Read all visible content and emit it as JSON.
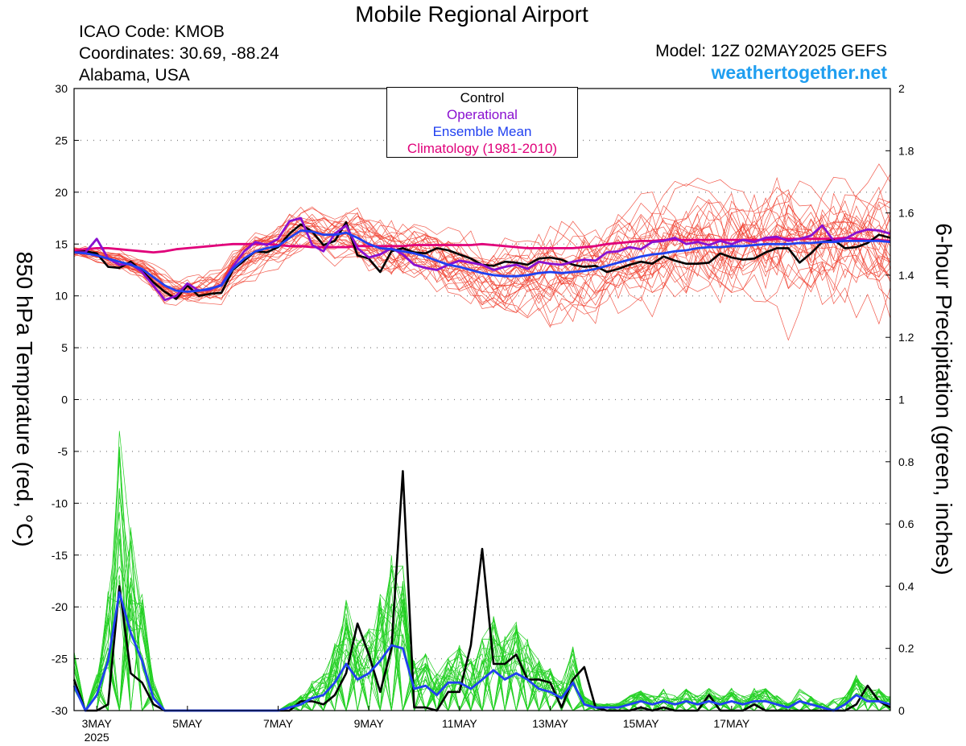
{
  "header": {
    "title": "Mobile Regional Airport",
    "icao": "ICAO Code: KMOB",
    "coordinates": "Coordinates: 30.69, -88.24",
    "region": "Alabama, USA",
    "model": "Model: 12Z 02MAY2025 GEFS",
    "site": "weathertogether.net"
  },
  "legend": {
    "control": "Control",
    "operational": "Operational",
    "ensemble_mean": "Ensemble Mean",
    "climatology": "Climatology (1981-2010)"
  },
  "colors": {
    "control": "#000000",
    "operational": "#8a10d0",
    "ensemble_mean": "#2040f0",
    "climatology": "#e0007a",
    "members_temp": "#f03c2c",
    "members_precip": "#22d022",
    "site": "#1f9ef0"
  },
  "chart_data": {
    "type": "line",
    "xlabel": "",
    "ylabel_left": "850 hPa Temprature (red, °C)",
    "ylabel_right": "6-hour Precipitation (green, inches)",
    "ylim_left": [
      -30,
      30
    ],
    "ylim_right": [
      0,
      2
    ],
    "yticks_left": [
      "30",
      "25",
      "20",
      "15",
      "10",
      "5",
      "0",
      "-5",
      "-10",
      "-15",
      "-20",
      "-25",
      "-30"
    ],
    "yticks_right": [
      "2",
      "1.8",
      "1.6",
      "1.4",
      "1.2",
      "1",
      "0.8",
      "0.6",
      "0.4",
      "0.2",
      "0"
    ],
    "x_start": "2025-05-02T12Z",
    "x_step_hours": 6,
    "xticks": [
      {
        "day": 3,
        "label": "3MAY",
        "sublabel": "2025"
      },
      {
        "day": 5,
        "label": "5MAY",
        "sublabel": ""
      },
      {
        "day": 7,
        "label": "7MAY",
        "sublabel": ""
      },
      {
        "day": 9,
        "label": "9MAY",
        "sublabel": ""
      },
      {
        "day": 11,
        "label": "11MAY",
        "sublabel": ""
      },
      {
        "day": 13,
        "label": "13MAY",
        "sublabel": ""
      },
      {
        "day": 15,
        "label": "15MAY",
        "sublabel": ""
      },
      {
        "day": 17,
        "label": "17MAY",
        "sublabel": ""
      }
    ],
    "grid": "horizontal dotted",
    "legend_position": "top-center",
    "series": [
      {
        "name": "Control",
        "axis": "left",
        "values": [
          14.2,
          14.3,
          14.1,
          12.8,
          12.7,
          13.3,
          12.4,
          11.3,
          10.4,
          9.7,
          11.0,
          10.0,
          10.2,
          10.3,
          12.5,
          13.4,
          14.3,
          14.2,
          14.7,
          16.0,
          16.9,
          16.2,
          14.9,
          15.3,
          17.1,
          13.9,
          13.6,
          12.3,
          14.3,
          14.6,
          14.2,
          14.1,
          14.6,
          14.4,
          14.0,
          13.6,
          13.0,
          12.9,
          13.3,
          13.2,
          13.0,
          13.6,
          13.7,
          13.5,
          13.0,
          12.8,
          12.9,
          12.3,
          12.6,
          13.0,
          13.3,
          13.1,
          13.8,
          13.4,
          13.1,
          13.1,
          13.2,
          14.1,
          13.7,
          13.5,
          13.6,
          14.2,
          14.6,
          14.6,
          13.2,
          14.1,
          15.2,
          15.4,
          14.6,
          14.7,
          15.1,
          15.9,
          15.6
        ]
      },
      {
        "name": "Operational",
        "axis": "left",
        "values": [
          14.2,
          14.2,
          15.5,
          13.6,
          13.0,
          13.1,
          12.3,
          11.0,
          9.6,
          10.0,
          11.2,
          10.5,
          10.6,
          11.1,
          12.8,
          14.3,
          15.2,
          14.9,
          15.5,
          17.2,
          17.5,
          14.9,
          14.3,
          16.0,
          16.8,
          14.6,
          13.7,
          14.0,
          14.6,
          14.0,
          13.0,
          12.7,
          12.5,
          13.0,
          13.4,
          13.2,
          13.0,
          12.5,
          12.8,
          13.0,
          12.6,
          13.3,
          13.1,
          13.0,
          13.3,
          13.5,
          13.4,
          14.2,
          14.3,
          14.7,
          14.5,
          15.2,
          15.3,
          15.6,
          15.0,
          15.2,
          14.9,
          15.3,
          15.0,
          15.4,
          15.2,
          15.6,
          15.7,
          15.3,
          15.5,
          15.8,
          16.8,
          15.3,
          15.5,
          16.1,
          16.4,
          16.3,
          16.0
        ]
      },
      {
        "name": "Ensemble Mean",
        "axis": "left",
        "values": [
          14.2,
          14.1,
          13.9,
          13.6,
          13.3,
          13.0,
          12.6,
          11.8,
          11.0,
          10.5,
          10.4,
          10.5,
          10.7,
          11.0,
          12.6,
          13.6,
          14.3,
          14.6,
          14.8,
          15.6,
          16.3,
          16.2,
          15.9,
          15.9,
          16.1,
          15.6,
          15.0,
          14.6,
          14.5,
          14.3,
          14.1,
          13.8,
          13.4,
          13.0,
          12.8,
          12.5,
          12.2,
          12.0,
          11.9,
          11.9,
          12.0,
          12.2,
          12.3,
          12.2,
          12.3,
          12.4,
          12.6,
          12.9,
          13.2,
          13.5,
          13.8,
          14.0,
          14.1,
          14.3,
          14.4,
          14.6,
          14.7,
          14.7,
          14.8,
          14.8,
          14.9,
          15.0,
          15.0,
          15.0,
          15.1,
          15.1,
          15.2,
          15.2,
          15.3,
          15.3,
          15.3,
          15.3,
          15.2
        ]
      },
      {
        "name": "Climatology (1981-2010)",
        "axis": "left",
        "values": [
          14.4,
          14.5,
          14.6,
          14.6,
          14.5,
          14.4,
          14.3,
          14.2,
          14.3,
          14.5,
          14.6,
          14.7,
          14.8,
          14.9,
          15.0,
          15.0,
          15.0,
          15.0,
          14.9,
          14.8,
          14.8,
          14.7,
          14.7,
          14.7,
          14.7,
          14.8,
          14.8,
          14.8,
          14.8,
          14.8,
          14.9,
          14.9,
          14.9,
          14.9,
          14.9,
          14.9,
          15.0,
          14.9,
          14.8,
          14.7,
          14.6,
          14.6,
          14.6,
          14.6,
          14.6,
          14.7,
          14.8,
          15.0,
          15.1,
          15.2,
          15.3,
          15.3,
          15.4,
          15.4,
          15.4,
          15.4,
          15.4,
          15.4,
          15.4,
          15.4,
          15.4,
          15.4,
          15.5,
          15.5,
          15.5,
          15.5,
          15.5,
          15.5,
          15.6,
          15.5,
          15.4,
          15.4,
          15.3
        ]
      },
      {
        "name": "Control",
        "axis": "right",
        "values": [
          0.1,
          0.0,
          0.0,
          0.02,
          0.4,
          0.12,
          0.09,
          0.02,
          0.0,
          0.0,
          0.0,
          0.0,
          0.0,
          0.0,
          0.0,
          0.0,
          0.0,
          0.0,
          0.0,
          0.0,
          0.03,
          0.03,
          0.02,
          0.05,
          0.12,
          0.28,
          0.18,
          0.06,
          0.2,
          0.77,
          0.01,
          0.01,
          0.0,
          0.06,
          0.06,
          0.21,
          0.52,
          0.15,
          0.15,
          0.18,
          0.1,
          0.1,
          0.09,
          0.01,
          0.1,
          0.14,
          0.01,
          0.0,
          0.0,
          0.0,
          0.01,
          0.0,
          0.01,
          0.0,
          0.0,
          0.0,
          0.05,
          0.0,
          0.0,
          0.0,
          0.02,
          0.0,
          0.0,
          0.0,
          0.0,
          0.0,
          0.0,
          0.0,
          0.0,
          0.02,
          0.08,
          0.03,
          0.01
        ]
      },
      {
        "name": "Ensemble Mean",
        "axis": "right",
        "values": [
          0.08,
          0.0,
          0.05,
          0.16,
          0.38,
          0.25,
          0.16,
          0.04,
          0.0,
          0.0,
          0.0,
          0.0,
          0.0,
          0.0,
          0.0,
          0.0,
          0.0,
          0.0,
          0.0,
          0.01,
          0.02,
          0.04,
          0.05,
          0.09,
          0.15,
          0.1,
          0.12,
          0.16,
          0.21,
          0.2,
          0.07,
          0.08,
          0.05,
          0.09,
          0.09,
          0.07,
          0.1,
          0.13,
          0.1,
          0.12,
          0.1,
          0.07,
          0.06,
          0.04,
          0.09,
          0.02,
          0.01,
          0.01,
          0.01,
          0.02,
          0.03,
          0.02,
          0.03,
          0.02,
          0.03,
          0.02,
          0.03,
          0.02,
          0.03,
          0.02,
          0.03,
          0.03,
          0.02,
          0.01,
          0.03,
          0.02,
          0.01,
          0.0,
          0.02,
          0.05,
          0.03,
          0.03,
          0.02
        ]
      }
    ]
  }
}
